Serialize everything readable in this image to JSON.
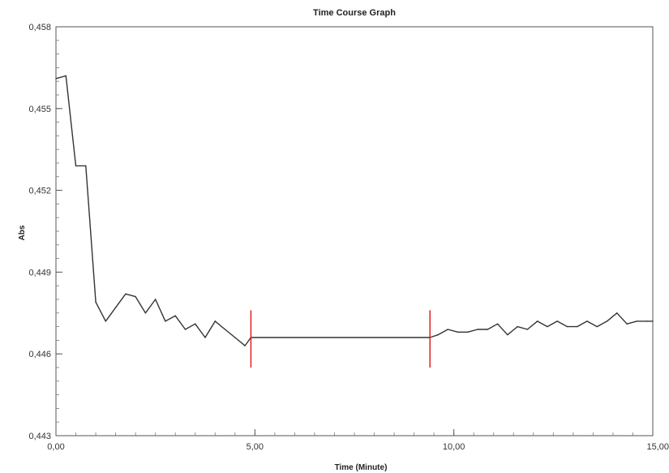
{
  "chart_data": {
    "type": "line",
    "title": "Time Course Graph",
    "xlabel": "Time (Minute)",
    "ylabel": "Abs",
    "xlim": [
      0,
      15
    ],
    "ylim": [
      0.443,
      0.458
    ],
    "x_ticks": [
      0,
      5,
      10,
      15
    ],
    "x_tick_labels": [
      "0,00",
      "5,00",
      "10,00",
      "15,00"
    ],
    "y_ticks": [
      0.443,
      0.446,
      0.449,
      0.452,
      0.455,
      0.458
    ],
    "y_tick_labels": [
      "0,443",
      "0,446",
      "0,449",
      "0,452",
      "0,455",
      "0,458"
    ],
    "grid": false,
    "legend": "none",
    "series": [
      {
        "color": "#333333",
        "x": [
          0,
          0.25,
          0.5,
          0.75,
          1.0,
          1.25,
          1.5,
          1.75,
          2.0,
          2.25,
          2.5,
          2.75,
          3.0,
          3.25,
          3.5,
          3.75,
          4.0,
          4.25,
          4.5,
          4.75,
          4.9,
          9.4,
          9.6,
          9.85,
          10.1,
          10.35,
          10.6,
          10.85,
          11.1,
          11.35,
          11.6,
          11.85,
          12.1,
          12.35,
          12.6,
          12.85,
          13.1,
          13.35,
          13.6,
          13.85,
          14.1,
          14.35,
          14.6,
          14.85,
          15.0
        ],
        "y": [
          0.4561,
          0.4562,
          0.4529,
          0.4529,
          0.4479,
          0.4472,
          0.4477,
          0.4482,
          0.4481,
          0.4475,
          0.448,
          0.4472,
          0.4474,
          0.4469,
          0.4471,
          0.4466,
          0.4472,
          0.4469,
          0.4466,
          0.4463,
          0.4466,
          0.4466,
          0.4467,
          0.4469,
          0.4468,
          0.4468,
          0.4469,
          0.4469,
          0.4471,
          0.4467,
          0.447,
          0.4469,
          0.4472,
          0.447,
          0.4472,
          0.447,
          0.447,
          0.4472,
          0.447,
          0.4472,
          0.4475,
          0.4471,
          0.4472,
          0.4472,
          0.4472
        ]
      }
    ],
    "markers": [
      {
        "x": 4.9,
        "y_range": [
          0.4455,
          0.4476
        ],
        "color": "#e02020"
      },
      {
        "x": 9.4,
        "y_range": [
          0.4455,
          0.4476
        ],
        "color": "#e02020"
      }
    ]
  }
}
